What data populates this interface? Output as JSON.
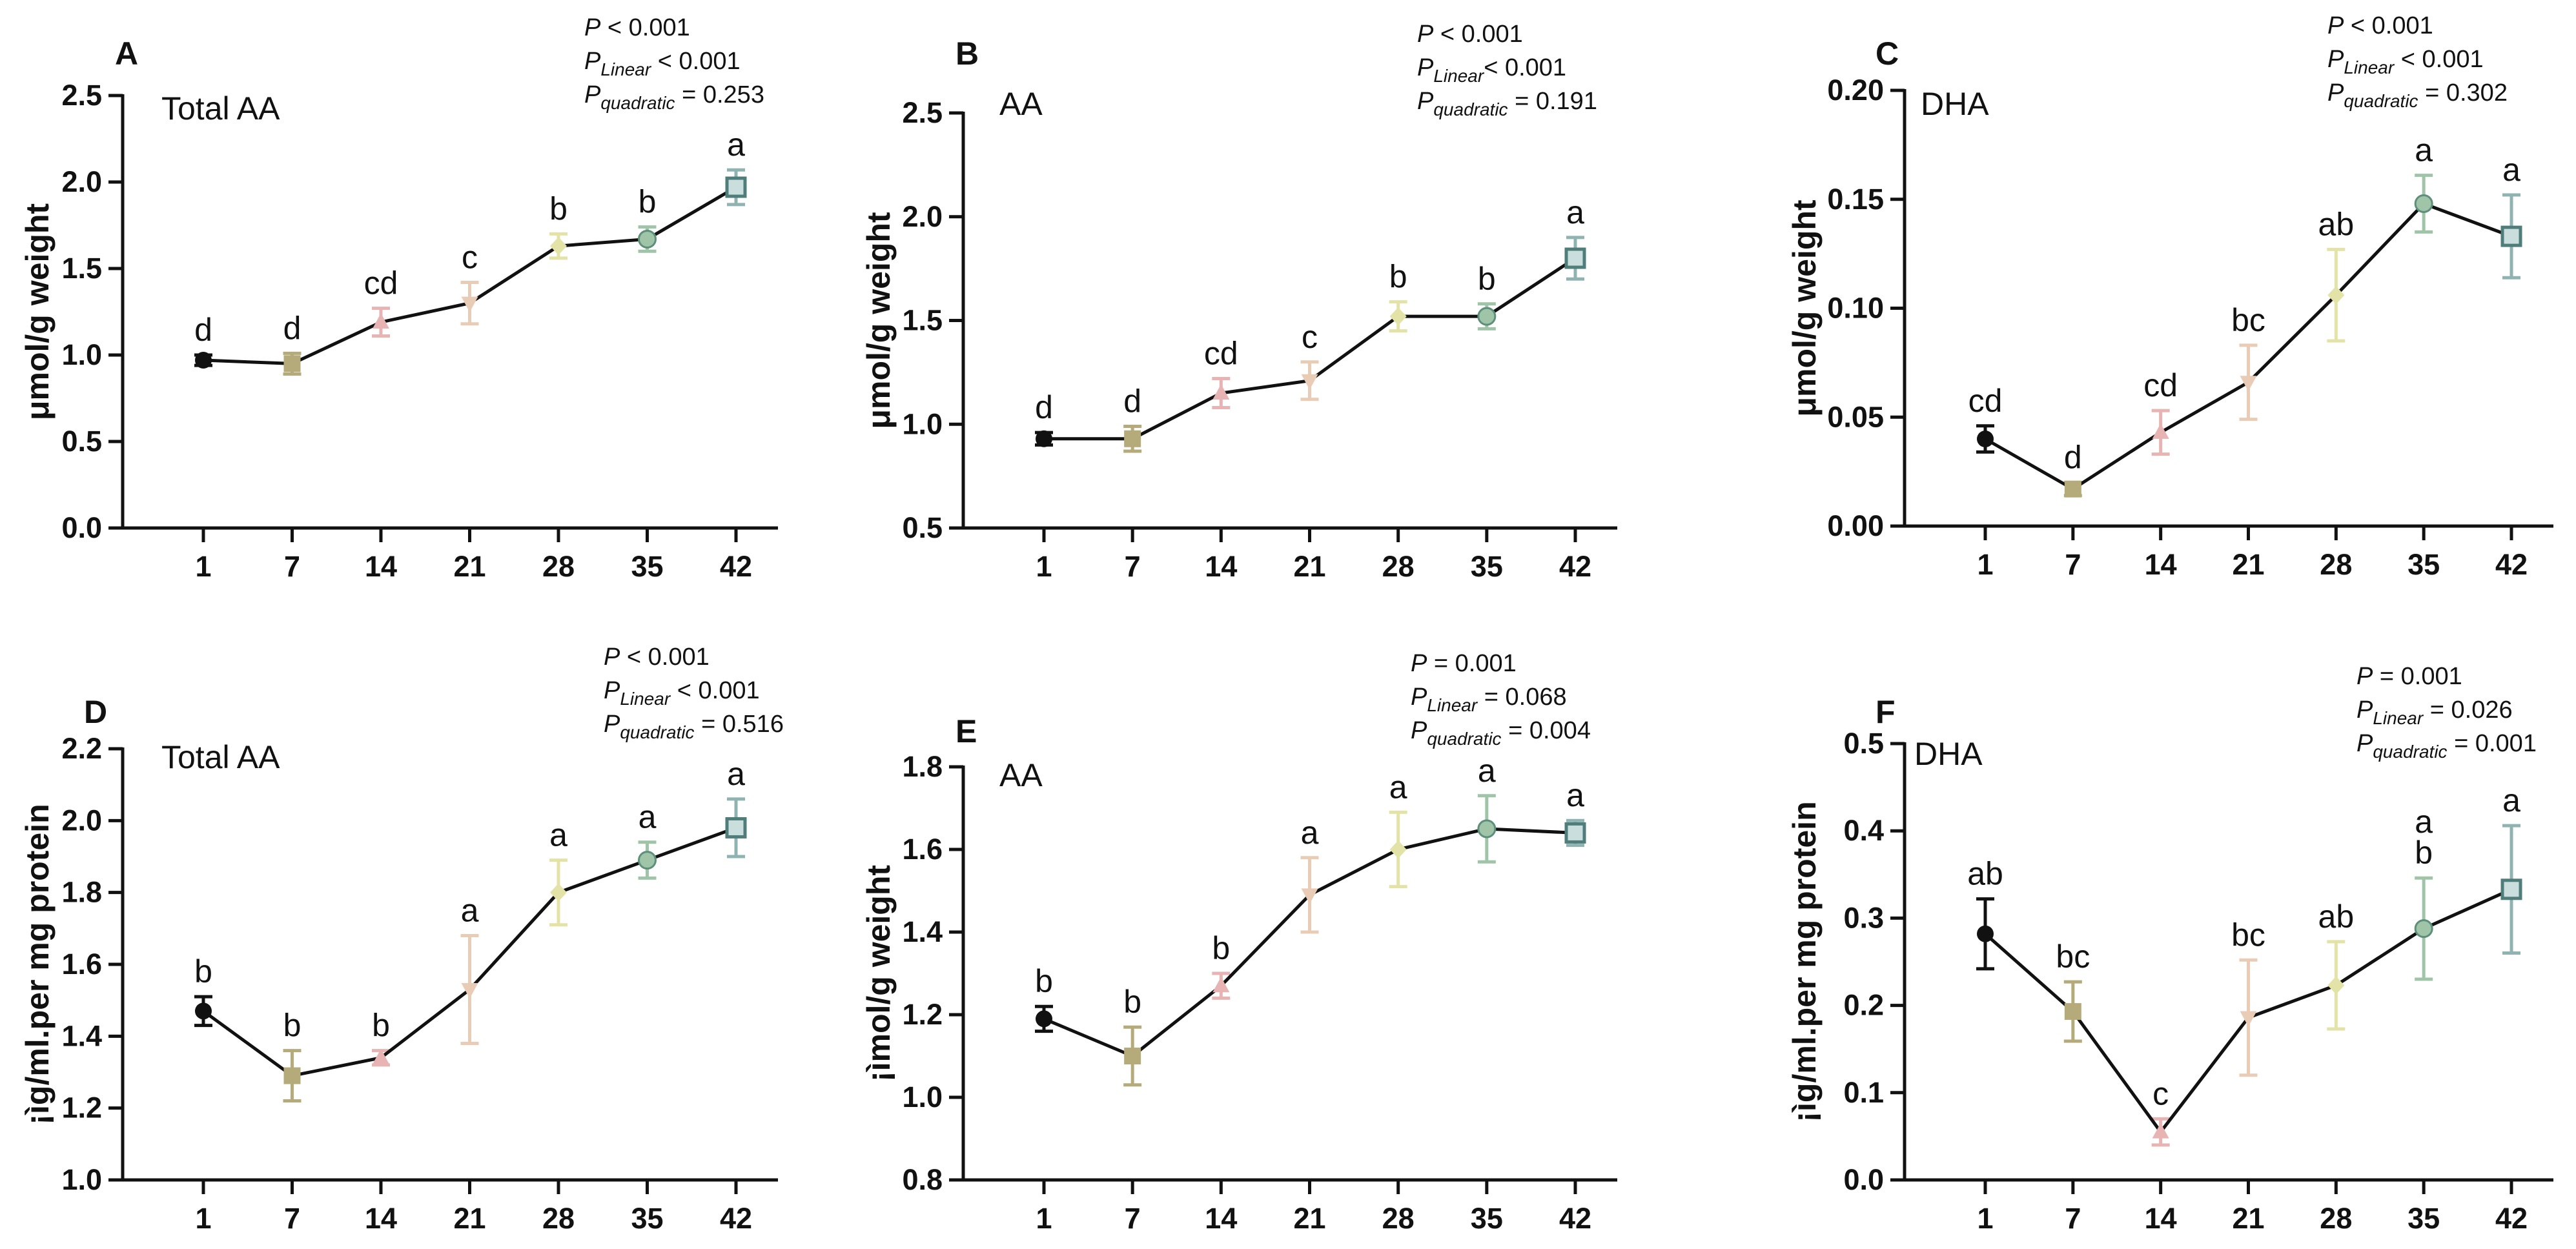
{
  "chart_data": [
    {
      "panel": "A",
      "type": "line",
      "title": "Total AA",
      "ylabel": "μmol/g weight",
      "xlabel": "",
      "x": [
        "1",
        "7",
        "14",
        "21",
        "28",
        "35",
        "42"
      ],
      "values": [
        0.97,
        0.95,
        1.19,
        1.3,
        1.63,
        1.67,
        1.97
      ],
      "errors": [
        0.03,
        0.06,
        0.08,
        0.12,
        0.07,
        0.07,
        0.1
      ],
      "letters": [
        "d",
        "d",
        "cd",
        "c",
        "b",
        "b",
        "a"
      ],
      "ylim": [
        0.0,
        2.5
      ],
      "yticks": [
        "0.0",
        "0.5",
        "1.0",
        "1.5",
        "2.0",
        "2.5"
      ],
      "stats": [
        {
          "main": "P",
          "sub": "",
          "rest": " < 0.001"
        },
        {
          "main": "P",
          "sub": "Linear",
          "rest": " < 0.001"
        },
        {
          "main": "P",
          "sub": "quadratic",
          "rest": " = 0.253"
        }
      ]
    },
    {
      "panel": "B",
      "type": "line",
      "title": "AA",
      "ylabel": "μmol/g weight",
      "xlabel": "",
      "x": [
        "1",
        "7",
        "14",
        "21",
        "28",
        "35",
        "42"
      ],
      "values": [
        0.93,
        0.93,
        1.15,
        1.21,
        1.52,
        1.52,
        1.8
      ],
      "errors": [
        0.03,
        0.06,
        0.07,
        0.09,
        0.07,
        0.06,
        0.1
      ],
      "letters": [
        "d",
        "d",
        "cd",
        "c",
        "b",
        "b",
        "a"
      ],
      "ylim": [
        0.5,
        2.5
      ],
      "yticks": [
        "0.5",
        "1.0",
        "1.5",
        "2.0",
        "2.5"
      ],
      "stats": [
        {
          "main": "P",
          "sub": "",
          "rest": " < 0.001"
        },
        {
          "main": "P",
          "sub": "Linear",
          "rest": "< 0.001"
        },
        {
          "main": "P",
          "sub": "quadratic",
          "rest": " = 0.191"
        }
      ]
    },
    {
      "panel": "C",
      "type": "line",
      "title": "DHA",
      "ylabel": "μmol/g weight",
      "xlabel": "",
      "x": [
        "1",
        "7",
        "14",
        "21",
        "28",
        "35",
        "42"
      ],
      "values": [
        0.04,
        0.017,
        0.043,
        0.066,
        0.106,
        0.148,
        0.133
      ],
      "errors": [
        0.006,
        0.003,
        0.01,
        0.017,
        0.021,
        0.013,
        0.019
      ],
      "letters": [
        "cd",
        "d",
        "cd",
        "bc",
        "ab",
        "a",
        "a"
      ],
      "ylim": [
        0.0,
        0.2
      ],
      "yticks": [
        "0.00",
        "0.05",
        "0.10",
        "0.15",
        "0.20"
      ],
      "stats": [
        {
          "main": "P",
          "sub": "",
          "rest": " < 0.001"
        },
        {
          "main": "P",
          "sub": "Linear",
          "rest": " < 0.001"
        },
        {
          "main": "P",
          "sub": "quadratic",
          "rest": " = 0.302"
        }
      ]
    },
    {
      "panel": "D",
      "type": "line",
      "title": "Total AA",
      "ylabel": "¡ìg/ml.per mg protein",
      "xlabel": "",
      "x": [
        "1",
        "7",
        "14",
        "21",
        "28",
        "35",
        "42"
      ],
      "values": [
        1.47,
        1.29,
        1.34,
        1.53,
        1.8,
        1.89,
        1.98
      ],
      "errors": [
        0.04,
        0.07,
        0.02,
        0.15,
        0.09,
        0.05,
        0.08
      ],
      "letters": [
        "b",
        "b",
        "b",
        "a",
        "a",
        "a",
        "a"
      ],
      "ylim": [
        1.0,
        2.2
      ],
      "yticks": [
        "1.0",
        "1.2",
        "1.4",
        "1.6",
        "1.8",
        "2.0",
        "2.2"
      ],
      "stats": [
        {
          "main": "P",
          "sub": "",
          "rest": " < 0.001"
        },
        {
          "main": "P",
          "sub": "Linear",
          "rest": " < 0.001"
        },
        {
          "main": "P",
          "sub": "quadratic",
          "rest": " = 0.516"
        }
      ]
    },
    {
      "panel": "E",
      "type": "line",
      "title": "AA",
      "ylabel": "¡ìmol/g weight",
      "xlabel": "",
      "x": [
        "1",
        "7",
        "14",
        "21",
        "28",
        "35",
        "42"
      ],
      "values": [
        1.19,
        1.1,
        1.27,
        1.49,
        1.6,
        1.65,
        1.64
      ],
      "errors": [
        0.03,
        0.07,
        0.03,
        0.09,
        0.09,
        0.08,
        0.03
      ],
      "letters": [
        "b",
        "b",
        "b",
        "a",
        "a",
        "a",
        "a"
      ],
      "ylim": [
        0.8,
        1.8
      ],
      "yticks": [
        "0.8",
        "1.0",
        "1.2",
        "1.4",
        "1.6",
        "1.8"
      ],
      "stats": [
        {
          "main": "P",
          "sub": "",
          "rest": " = 0.001"
        },
        {
          "main": "P",
          "sub": "Linear",
          "rest": " = 0.068"
        },
        {
          "main": "P",
          "sub": "quadratic",
          "rest": " = 0.004"
        }
      ]
    },
    {
      "panel": "F",
      "type": "line",
      "title": "DHA",
      "ylabel": "¡ìg/ml.per mg protein",
      "xlabel": "",
      "x": [
        "1",
        "7",
        "14",
        "21",
        "28",
        "35",
        "42"
      ],
      "values": [
        0.282,
        0.193,
        0.055,
        0.186,
        0.223,
        0.288,
        0.333
      ],
      "errors": [
        0.04,
        0.034,
        0.015,
        0.066,
        0.05,
        0.058,
        0.073
      ],
      "letters": [
        "ab",
        "bc",
        "c",
        "bc",
        "ab",
        "a\nb",
        "a"
      ],
      "ylim": [
        0.0,
        0.5
      ],
      "yticks": [
        "0.0",
        "0.1",
        "0.2",
        "0.3",
        "0.4",
        "0.5"
      ],
      "stats": [
        {
          "main": "P",
          "sub": "",
          "rest": " = 0.001"
        },
        {
          "main": "P",
          "sub": "Linear",
          "rest": " = 0.026"
        },
        {
          "main": "P",
          "sub": "quadratic",
          "rest": " = 0.001"
        }
      ]
    }
  ],
  "series_colors": [
    "#111111",
    "#b5ab7a",
    "#e7b3b3",
    "#e9ccb6",
    "#e3e3a7",
    "#9fc4a8",
    "#8fb3b1"
  ],
  "line_color": "#111111"
}
